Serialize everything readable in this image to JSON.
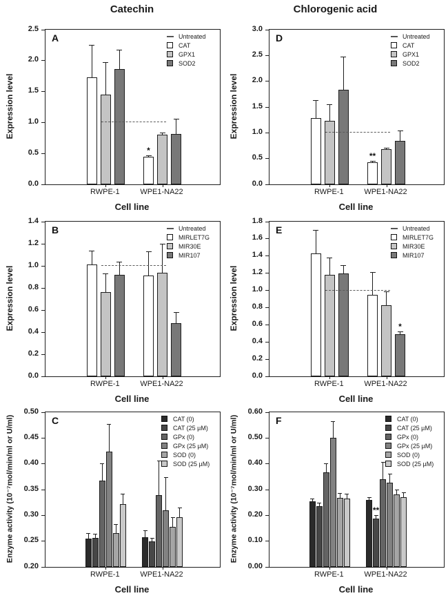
{
  "page": {
    "background": "#ffffff"
  },
  "columns": [
    {
      "title": "Catechin"
    },
    {
      "title": "Chlorogenic acid"
    }
  ],
  "shared": {
    "xlabel": "Cell line",
    "categories": [
      "RWPE-1",
      "WPE1-NA22"
    ],
    "untreated_label": "Untreated",
    "bar_border_color": "#1c1c1c",
    "reference_line_color": "#5a5a5a"
  },
  "chart_data": [
    {
      "letter": "A",
      "row": 0,
      "col": 0,
      "type": "bar",
      "title": "Catechin",
      "ylabel": "Expression level",
      "xlabel": "Cell line",
      "categories": [
        "RWPE-1",
        "WPE1-NA22"
      ],
      "ylim": [
        0,
        2.5
      ],
      "ytick_step": 0.5,
      "ytick_decimals": 1,
      "grid": false,
      "legend_position": "top-right",
      "legend_untreated": true,
      "reference_line": 1.0,
      "series": [
        {
          "name": "CAT",
          "color": "#ffffff",
          "values": [
            1.73,
            0.45
          ],
          "errors": [
            0.52,
            0.02
          ]
        },
        {
          "name": "GPX1",
          "color": "#c4c4c4",
          "values": [
            1.45,
            0.8
          ],
          "errors": [
            0.52,
            0.04
          ]
        },
        {
          "name": "SOD2",
          "color": "#787878",
          "values": [
            1.86,
            0.82
          ],
          "errors": [
            0.32,
            0.24
          ]
        }
      ],
      "annotations": [
        {
          "text": "*",
          "category": 1,
          "series": 0
        }
      ]
    },
    {
      "letter": "D",
      "row": 0,
      "col": 1,
      "type": "bar",
      "title": "Chlorogenic acid",
      "ylabel": "Expression level",
      "xlabel": "Cell line",
      "categories": [
        "RWPE-1",
        "WPE1-NA22"
      ],
      "ylim": [
        0,
        3.0
      ],
      "ytick_step": 0.5,
      "ytick_decimals": 1,
      "grid": false,
      "legend_position": "top-right",
      "legend_untreated": true,
      "reference_line": 1.0,
      "series": [
        {
          "name": "CAT",
          "color": "#ffffff",
          "values": [
            1.29,
            0.43
          ],
          "errors": [
            0.34,
            0.03
          ]
        },
        {
          "name": "GPX1",
          "color": "#c4c4c4",
          "values": [
            1.23,
            0.68
          ],
          "errors": [
            0.32,
            0.03
          ]
        },
        {
          "name": "SOD2",
          "color": "#787878",
          "values": [
            1.84,
            0.84
          ],
          "errors": [
            0.64,
            0.2
          ]
        }
      ],
      "annotations": [
        {
          "text": "**",
          "category": 1,
          "series": 0
        }
      ]
    },
    {
      "letter": "B",
      "row": 1,
      "col": 0,
      "type": "bar",
      "title": "Catechin",
      "ylabel": "Expression level",
      "xlabel": "Cell line",
      "categories": [
        "RWPE-1",
        "WPE1-NA22"
      ],
      "ylim": [
        0,
        1.4
      ],
      "ytick_step": 0.2,
      "ytick_decimals": 1,
      "grid": false,
      "legend_position": "top-right",
      "legend_untreated": true,
      "reference_line": 1.0,
      "series": [
        {
          "name": "MIRLET7G",
          "color": "#ffffff",
          "values": [
            1.01,
            0.91
          ],
          "errors": [
            0.13,
            0.22
          ]
        },
        {
          "name": "MIR30E",
          "color": "#c4c4c4",
          "values": [
            0.76,
            0.94
          ],
          "errors": [
            0.17,
            0.26
          ]
        },
        {
          "name": "MIR107",
          "color": "#787878",
          "values": [
            0.92,
            0.48
          ],
          "errors": [
            0.12,
            0.1
          ]
        }
      ],
      "annotations": []
    },
    {
      "letter": "E",
      "row": 1,
      "col": 1,
      "type": "bar",
      "title": "Chlorogenic acid",
      "ylabel": "Expression level",
      "xlabel": "Cell line",
      "categories": [
        "RWPE-1",
        "WPE1-NA22"
      ],
      "ylim": [
        0,
        1.8
      ],
      "ytick_step": 0.2,
      "ytick_decimals": 1,
      "grid": false,
      "legend_position": "top-right",
      "legend_untreated": true,
      "reference_line": 1.0,
      "series": [
        {
          "name": "MIRLET7G",
          "color": "#ffffff",
          "values": [
            1.43,
            0.95
          ],
          "errors": [
            0.27,
            0.26
          ]
        },
        {
          "name": "MIR30E",
          "color": "#c4c4c4",
          "values": [
            1.18,
            0.83
          ],
          "errors": [
            0.2,
            0.16
          ]
        },
        {
          "name": "MIR107",
          "color": "#787878",
          "values": [
            1.2,
            0.49
          ],
          "errors": [
            0.09,
            0.03
          ]
        }
      ],
      "annotations": [
        {
          "text": "*",
          "category": 1,
          "series": 2
        }
      ]
    },
    {
      "letter": "C",
      "row": 2,
      "col": 0,
      "type": "bar",
      "title": "Catechin",
      "ylabel": "Enzyme activity (10⁻⁷mol/min/ml or U/ml)",
      "xlabel": "Cell line",
      "categories": [
        "RWPE-1",
        "WPE1-NA22"
      ],
      "ylim": [
        0.2,
        0.5
      ],
      "ytick_step": 0.05,
      "ytick_decimals": 2,
      "grid": false,
      "legend_position": "top-right",
      "legend_untreated": false,
      "reference_line": null,
      "series": [
        {
          "name": "CAT (0)",
          "color": "#2b2b2b",
          "values": [
            0.255,
            0.258
          ],
          "errors": [
            0.01,
            0.013
          ]
        },
        {
          "name": "CAT (25 µM)",
          "color": "#474747",
          "values": [
            0.256,
            0.249
          ],
          "errors": [
            0.008,
            0.007
          ]
        },
        {
          "name": "GPx (0)",
          "color": "#646464",
          "values": [
            0.367,
            0.339
          ],
          "errors": [
            0.034,
            0.067
          ]
        },
        {
          "name": "GPx (25 µM)",
          "color": "#828282",
          "values": [
            0.423,
            0.31
          ],
          "errors": [
            0.054,
            0.064
          ]
        },
        {
          "name": "SOD (0)",
          "color": "#a5a5a5",
          "values": [
            0.265,
            0.278
          ],
          "errors": [
            0.018,
            0.019
          ]
        },
        {
          "name": "SOD (25 µM)",
          "color": "#c9c9c9",
          "values": [
            0.322,
            0.297
          ],
          "errors": [
            0.02,
            0.018
          ]
        }
      ],
      "annotations": []
    },
    {
      "letter": "F",
      "row": 2,
      "col": 1,
      "type": "bar",
      "title": "Chlorogenic acid",
      "ylabel": "Enzyme activity (10⁻⁷mol/min/ml or U/ml)",
      "xlabel": "Cell line",
      "categories": [
        "RWPE-1",
        "WPE1-NA22"
      ],
      "ylim": [
        0.0,
        0.6
      ],
      "ytick_step": 0.1,
      "ytick_decimals": 2,
      "grid": false,
      "legend_position": "top-right",
      "legend_untreated": false,
      "reference_line": null,
      "series": [
        {
          "name": "CAT (0)",
          "color": "#2b2b2b",
          "values": [
            0.255,
            0.259
          ],
          "errors": [
            0.01,
            0.012
          ]
        },
        {
          "name": "CAT (25 µM)",
          "color": "#474747",
          "values": [
            0.235,
            0.188
          ],
          "errors": [
            0.014,
            0.012
          ]
        },
        {
          "name": "GPx (0)",
          "color": "#646464",
          "values": [
            0.367,
            0.339
          ],
          "errors": [
            0.035,
            0.067
          ]
        },
        {
          "name": "GPx (25 µM)",
          "color": "#828282",
          "values": [
            0.5,
            0.328
          ],
          "errors": [
            0.065,
            0.034
          ]
        },
        {
          "name": "SOD (0)",
          "color": "#a5a5a5",
          "values": [
            0.268,
            0.28
          ],
          "errors": [
            0.019,
            0.02
          ]
        },
        {
          "name": "SOD (25 µM)",
          "color": "#c9c9c9",
          "values": [
            0.264,
            0.27
          ],
          "errors": [
            0.019,
            0.018
          ]
        }
      ],
      "annotations": [
        {
          "text": "**",
          "category": 1,
          "series": 1
        }
      ]
    }
  ]
}
